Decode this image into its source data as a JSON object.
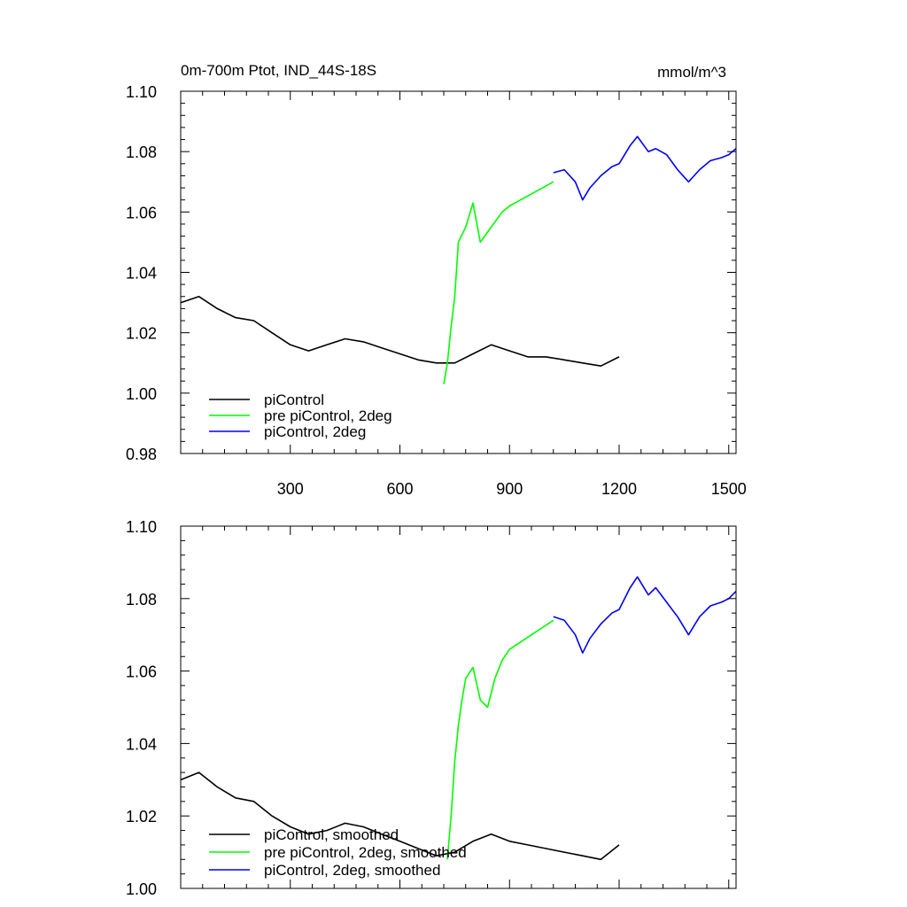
{
  "chart_data": [
    {
      "type": "line",
      "title": "0m-700m Ptot, IND_44S-18S",
      "units": "mmol/m^3",
      "xlabel": "",
      "ylabel": "",
      "xlim": [
        0,
        1520
      ],
      "ylim": [
        0.98,
        1.1
      ],
      "xticks": [
        300,
        600,
        900,
        1200,
        1500
      ],
      "xtick_labels": [
        "300",
        "600",
        "900",
        "1200",
        "1500"
      ],
      "yticks": [
        0.98,
        1.0,
        1.02,
        1.04,
        1.06,
        1.08,
        1.1
      ],
      "ytick_labels": [
        "0.98",
        "1.00",
        "1.02",
        "1.04",
        "1.06",
        "1.08",
        "1.10"
      ],
      "grid": false,
      "legend_position": "bottom-left",
      "series": [
        {
          "name": "piControl",
          "color": "#000000",
          "x": [
            1,
            50,
            100,
            150,
            200,
            250,
            300,
            350,
            400,
            450,
            500,
            550,
            600,
            650,
            700,
            750,
            800,
            850,
            900,
            950,
            1000,
            1050,
            1100,
            1150,
            1200
          ],
          "y": [
            1.03,
            1.032,
            1.028,
            1.025,
            1.024,
            1.02,
            1.016,
            1.014,
            1.016,
            1.018,
            1.017,
            1.015,
            1.013,
            1.011,
            1.01,
            1.01,
            1.013,
            1.016,
            1.014,
            1.012,
            1.012,
            1.011,
            1.01,
            1.009,
            1.012
          ]
        },
        {
          "name": "pre piControl, 2deg",
          "color": "#00ff00",
          "x": [
            720,
            730,
            740,
            750,
            760,
            780,
            800,
            820,
            850,
            880,
            900,
            930,
            960,
            990,
            1020
          ],
          "y": [
            1.003,
            1.01,
            1.022,
            1.032,
            1.05,
            1.055,
            1.063,
            1.05,
            1.055,
            1.06,
            1.062,
            1.064,
            1.066,
            1.068,
            1.07
          ]
        },
        {
          "name": "piControl, 2deg",
          "color": "#0000ff",
          "x": [
            1020,
            1050,
            1080,
            1100,
            1120,
            1150,
            1180,
            1200,
            1230,
            1250,
            1280,
            1300,
            1330,
            1360,
            1390,
            1420,
            1450,
            1480,
            1500,
            1520
          ],
          "y": [
            1.073,
            1.074,
            1.07,
            1.064,
            1.068,
            1.072,
            1.075,
            1.076,
            1.082,
            1.085,
            1.08,
            1.081,
            1.079,
            1.074,
            1.07,
            1.074,
            1.077,
            1.078,
            1.079,
            1.081
          ]
        }
      ]
    },
    {
      "type": "line",
      "title": "",
      "xlabel": "",
      "ylabel": "",
      "xlim": [
        0,
        1520
      ],
      "ylim": [
        1.0,
        1.1
      ],
      "xticks": [
        300,
        600,
        900,
        1200,
        1500
      ],
      "yticks": [
        1.0,
        1.02,
        1.04,
        1.06,
        1.08,
        1.1
      ],
      "ytick_labels": [
        "1.00",
        "1.02",
        "1.04",
        "1.06",
        "1.08",
        "1.10"
      ],
      "grid": false,
      "legend_position": "bottom-left",
      "series": [
        {
          "name": "piControl, smoothed",
          "color": "#000000",
          "x": [
            1,
            50,
            100,
            150,
            200,
            250,
            300,
            350,
            400,
            450,
            500,
            550,
            600,
            650,
            700,
            750,
            800,
            850,
            900,
            950,
            1000,
            1050,
            1100,
            1150,
            1200
          ],
          "y": [
            1.03,
            1.032,
            1.028,
            1.025,
            1.024,
            1.02,
            1.017,
            1.015,
            1.016,
            1.018,
            1.017,
            1.015,
            1.013,
            1.011,
            1.009,
            1.01,
            1.013,
            1.015,
            1.013,
            1.012,
            1.011,
            1.01,
            1.009,
            1.008,
            1.012
          ]
        },
        {
          "name": "pre piControl, 2deg, smoothed",
          "color": "#00ff00",
          "x": [
            730,
            740,
            750,
            760,
            770,
            780,
            800,
            820,
            840,
            860,
            880,
            900,
            930,
            960,
            990,
            1020
          ],
          "y": [
            1.008,
            1.02,
            1.035,
            1.045,
            1.052,
            1.058,
            1.061,
            1.052,
            1.05,
            1.058,
            1.063,
            1.066,
            1.068,
            1.07,
            1.072,
            1.074
          ]
        },
        {
          "name": "piControl, 2deg, smoothed",
          "color": "#0000ff",
          "x": [
            1020,
            1050,
            1080,
            1100,
            1120,
            1150,
            1180,
            1200,
            1230,
            1250,
            1280,
            1300,
            1330,
            1360,
            1390,
            1420,
            1450,
            1480,
            1500,
            1520
          ],
          "y": [
            1.075,
            1.074,
            1.07,
            1.065,
            1.069,
            1.073,
            1.076,
            1.077,
            1.083,
            1.086,
            1.081,
            1.083,
            1.079,
            1.075,
            1.07,
            1.075,
            1.078,
            1.079,
            1.08,
            1.082
          ]
        }
      ]
    }
  ]
}
